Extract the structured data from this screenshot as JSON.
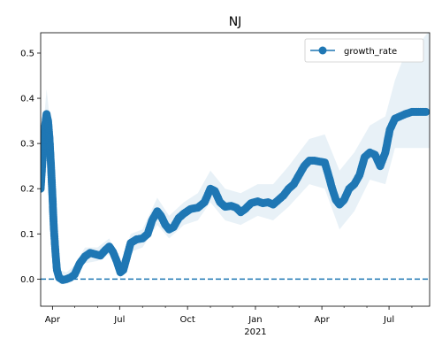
{
  "chart_data": {
    "type": "line",
    "title": "NJ",
    "xlabel": "",
    "ylabel": "",
    "x_range": [
      "2020-03-16",
      "2021-08-25"
    ],
    "ylim": [
      -0.06,
      0.545
    ],
    "grid": false,
    "legend_position": "top-right",
    "x_ticks": [
      {
        "date": "2020-04-01",
        "label": "Apr"
      },
      {
        "date": "2020-07-01",
        "label": "Jul"
      },
      {
        "date": "2020-10-01",
        "label": "Oct"
      },
      {
        "date": "2021-01-01",
        "label": "Jan"
      },
      {
        "date": "2021-04-01",
        "label": "Apr"
      },
      {
        "date": "2021-07-01",
        "label": "Jul"
      }
    ],
    "x_minor_ticks": [
      "2020-05-01",
      "2020-06-01",
      "2020-08-01",
      "2020-09-01",
      "2020-11-01",
      "2020-12-01",
      "2021-02-01",
      "2021-03-01",
      "2021-05-01",
      "2021-06-01",
      "2021-08-01"
    ],
    "year_label": {
      "text": "2021",
      "date": "2021-01-01"
    },
    "y_ticks": [
      0.0,
      0.1,
      0.2,
      0.3,
      0.4,
      0.5
    ],
    "y_tick_labels": [
      "0.0",
      "0.1",
      "0.2",
      "0.3",
      "0.4",
      "0.5"
    ],
    "reference_line": {
      "y": 0.0,
      "style": "dashed",
      "color": "#1f77b4"
    },
    "series": [
      {
        "name": "growth_rate",
        "color": "#1f77b4",
        "marker": "circle",
        "points": [
          [
            "2020-03-16",
            0.2
          ],
          [
            "2020-03-18",
            0.25
          ],
          [
            "2020-03-20",
            0.3
          ],
          [
            "2020-03-22",
            0.34
          ],
          [
            "2020-03-24",
            0.365
          ],
          [
            "2020-03-26",
            0.35
          ],
          [
            "2020-03-28",
            0.31
          ],
          [
            "2020-03-30",
            0.25
          ],
          [
            "2020-04-01",
            0.18
          ],
          [
            "2020-04-03",
            0.11
          ],
          [
            "2020-04-05",
            0.06
          ],
          [
            "2020-04-07",
            0.02
          ],
          [
            "2020-04-10",
            0.003
          ],
          [
            "2020-04-15",
            -0.002
          ],
          [
            "2020-04-20",
            0.0
          ],
          [
            "2020-04-25",
            0.003
          ],
          [
            "2020-05-01",
            0.01
          ],
          [
            "2020-05-08",
            0.035
          ],
          [
            "2020-05-15",
            0.05
          ],
          [
            "2020-05-22",
            0.058
          ],
          [
            "2020-05-29",
            0.055
          ],
          [
            "2020-06-05",
            0.052
          ],
          [
            "2020-06-12",
            0.065
          ],
          [
            "2020-06-17",
            0.072
          ],
          [
            "2020-06-22",
            0.06
          ],
          [
            "2020-06-27",
            0.04
          ],
          [
            "2020-07-02",
            0.015
          ],
          [
            "2020-07-06",
            0.02
          ],
          [
            "2020-07-11",
            0.05
          ],
          [
            "2020-07-16",
            0.08
          ],
          [
            "2020-07-24",
            0.088
          ],
          [
            "2020-08-01",
            0.09
          ],
          [
            "2020-08-08",
            0.1
          ],
          [
            "2020-08-14",
            0.13
          ],
          [
            "2020-08-21",
            0.15
          ],
          [
            "2020-08-26",
            0.14
          ],
          [
            "2020-09-01",
            0.12
          ],
          [
            "2020-09-06",
            0.11
          ],
          [
            "2020-09-12",
            0.115
          ],
          [
            "2020-09-19",
            0.135
          ],
          [
            "2020-09-26",
            0.145
          ],
          [
            "2020-10-05",
            0.155
          ],
          [
            "2020-10-15",
            0.158
          ],
          [
            "2020-10-24",
            0.17
          ],
          [
            "2020-11-01",
            0.2
          ],
          [
            "2020-11-07",
            0.195
          ],
          [
            "2020-11-14",
            0.17
          ],
          [
            "2020-11-21",
            0.16
          ],
          [
            "2020-11-29",
            0.162
          ],
          [
            "2020-12-06",
            0.158
          ],
          [
            "2020-12-12",
            0.148
          ],
          [
            "2020-12-18",
            0.155
          ],
          [
            "2020-12-26",
            0.168
          ],
          [
            "2021-01-04",
            0.172
          ],
          [
            "2021-01-11",
            0.168
          ],
          [
            "2021-01-18",
            0.17
          ],
          [
            "2021-01-25",
            0.165
          ],
          [
            "2021-02-01",
            0.175
          ],
          [
            "2021-02-08",
            0.185
          ],
          [
            "2021-02-15",
            0.2
          ],
          [
            "2021-02-22",
            0.21
          ],
          [
            "2021-03-01",
            0.23
          ],
          [
            "2021-03-08",
            0.25
          ],
          [
            "2021-03-15",
            0.262
          ],
          [
            "2021-03-22",
            0.262
          ],
          [
            "2021-03-29",
            0.26
          ],
          [
            "2021-04-05",
            0.258
          ],
          [
            "2021-04-10",
            0.23
          ],
          [
            "2021-04-15",
            0.2
          ],
          [
            "2021-04-20",
            0.175
          ],
          [
            "2021-04-25",
            0.165
          ],
          [
            "2021-05-01",
            0.175
          ],
          [
            "2021-05-08",
            0.2
          ],
          [
            "2021-05-15",
            0.21
          ],
          [
            "2021-05-22",
            0.23
          ],
          [
            "2021-05-29",
            0.27
          ],
          [
            "2021-06-05",
            0.28
          ],
          [
            "2021-06-12",
            0.275
          ],
          [
            "2021-06-19",
            0.25
          ],
          [
            "2021-06-26",
            0.28
          ],
          [
            "2021-07-02",
            0.33
          ],
          [
            "2021-07-09",
            0.355
          ],
          [
            "2021-07-16",
            0.36
          ],
          [
            "2021-07-23",
            0.365
          ],
          [
            "2021-08-01",
            0.37
          ],
          [
            "2021-08-10",
            0.37
          ],
          [
            "2021-08-20",
            0.37
          ]
        ]
      }
    ],
    "confidence_band": {
      "color": "#1f77b4",
      "lower": [
        [
          "2020-03-16",
          0.2
        ],
        [
          "2020-03-20",
          0.26
        ],
        [
          "2020-03-24",
          0.33
        ],
        [
          "2020-03-28",
          0.28
        ],
        [
          "2020-04-01",
          0.15
        ],
        [
          "2020-04-05",
          0.04
        ],
        [
          "2020-04-10",
          -0.01
        ],
        [
          "2020-04-20",
          -0.01
        ],
        [
          "2020-05-01",
          0.0
        ],
        [
          "2020-05-15",
          0.035
        ],
        [
          "2020-06-01",
          0.04
        ],
        [
          "2020-06-17",
          0.055
        ],
        [
          "2020-07-02",
          0.0
        ],
        [
          "2020-07-16",
          0.06
        ],
        [
          "2020-08-01",
          0.07
        ],
        [
          "2020-08-21",
          0.12
        ],
        [
          "2020-09-06",
          0.09
        ],
        [
          "2020-09-26",
          0.12
        ],
        [
          "2020-10-15",
          0.13
        ],
        [
          "2020-11-01",
          0.17
        ],
        [
          "2020-11-21",
          0.13
        ],
        [
          "2020-12-12",
          0.12
        ],
        [
          "2021-01-04",
          0.14
        ],
        [
          "2021-01-25",
          0.13
        ],
        [
          "2021-02-15",
          0.16
        ],
        [
          "2021-03-15",
          0.21
        ],
        [
          "2021-04-05",
          0.2
        ],
        [
          "2021-04-25",
          0.11
        ],
        [
          "2021-05-15",
          0.15
        ],
        [
          "2021-06-05",
          0.22
        ],
        [
          "2021-06-26",
          0.21
        ],
        [
          "2021-07-09",
          0.29
        ],
        [
          "2021-07-23",
          0.29
        ],
        [
          "2021-08-10",
          0.29
        ],
        [
          "2021-08-25",
          0.29
        ]
      ],
      "upper": [
        [
          "2020-03-16",
          0.21
        ],
        [
          "2020-03-20",
          0.34
        ],
        [
          "2020-03-24",
          0.42
        ],
        [
          "2020-03-28",
          0.36
        ],
        [
          "2020-04-01",
          0.21
        ],
        [
          "2020-04-05",
          0.08
        ],
        [
          "2020-04-10",
          0.02
        ],
        [
          "2020-04-20",
          0.015
        ],
        [
          "2020-05-01",
          0.03
        ],
        [
          "2020-05-15",
          0.07
        ],
        [
          "2020-06-01",
          0.07
        ],
        [
          "2020-06-17",
          0.09
        ],
        [
          "2020-07-02",
          0.035
        ],
        [
          "2020-07-16",
          0.1
        ],
        [
          "2020-08-01",
          0.11
        ],
        [
          "2020-08-21",
          0.18
        ],
        [
          "2020-09-06",
          0.14
        ],
        [
          "2020-09-26",
          0.17
        ],
        [
          "2020-10-15",
          0.19
        ],
        [
          "2020-11-01",
          0.24
        ],
        [
          "2020-11-21",
          0.2
        ],
        [
          "2020-12-12",
          0.19
        ],
        [
          "2021-01-04",
          0.21
        ],
        [
          "2021-01-25",
          0.21
        ],
        [
          "2021-02-15",
          0.25
        ],
        [
          "2021-03-15",
          0.31
        ],
        [
          "2021-04-05",
          0.32
        ],
        [
          "2021-04-25",
          0.24
        ],
        [
          "2021-05-15",
          0.28
        ],
        [
          "2021-06-05",
          0.34
        ],
        [
          "2021-06-26",
          0.36
        ],
        [
          "2021-07-09",
          0.44
        ],
        [
          "2021-07-23",
          0.5
        ],
        [
          "2021-08-10",
          0.52
        ],
        [
          "2021-08-25",
          0.55
        ]
      ]
    }
  }
}
